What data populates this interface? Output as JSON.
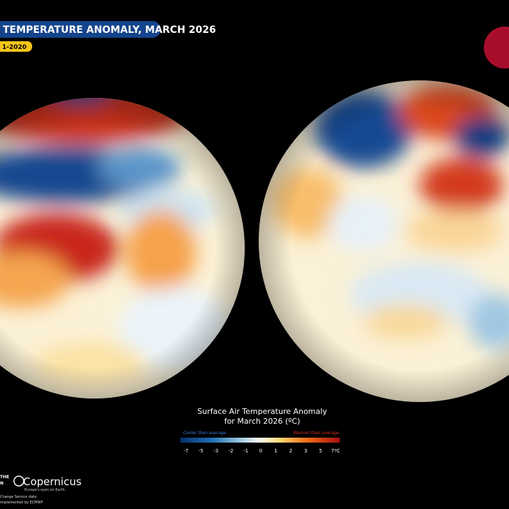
{
  "header": {
    "title": "TEMPERATURE ANOMALY, MARCH 2026",
    "subtitle": "1-2020"
  },
  "legend": {
    "title": "Surface Air Temperature Anomaly",
    "subtitle": "for March 2026 (ºC)",
    "cooler": "Cooler than average",
    "warmer": "Warmer than average",
    "ticks": [
      "-7",
      "-5",
      "-3",
      "-2",
      "-1",
      "0",
      "1",
      "2",
      "3",
      "5",
      "7ºC"
    ]
  },
  "footer": {
    "partner": [
      "THE",
      "N"
    ],
    "brand": "Copernicus",
    "tagline": "Europe's eyes on Earth",
    "credits": [
      "Change Service data",
      "implemented by ECMWF"
    ]
  }
}
